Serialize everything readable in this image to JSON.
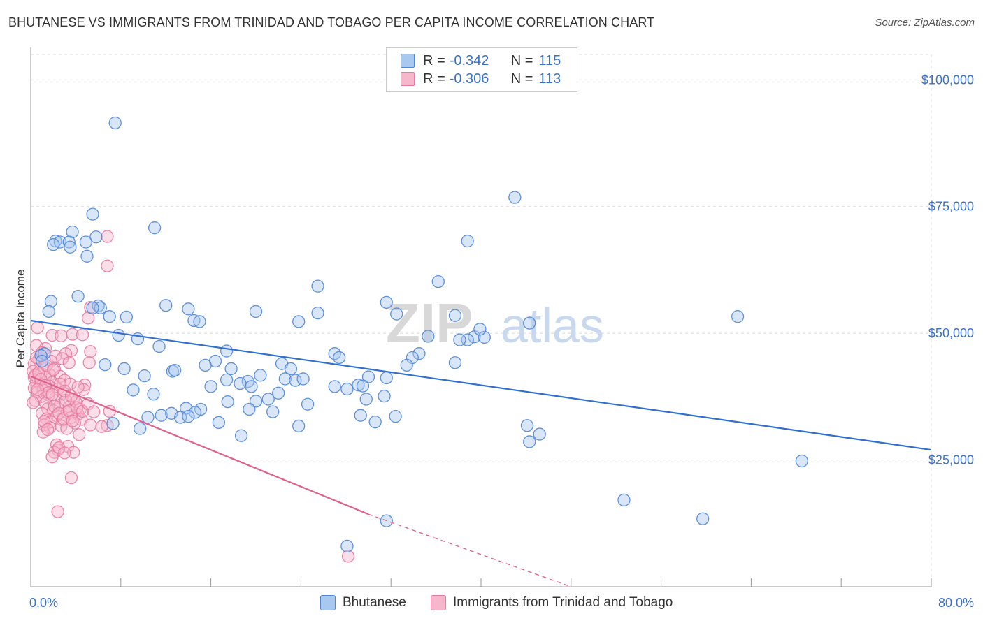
{
  "title": "BHUTANESE VS IMMIGRANTS FROM TRINIDAD AND TOBAGO PER CAPITA INCOME CORRELATION CHART",
  "source": "Source: ZipAtlas.com",
  "watermark": {
    "zip": "ZIP",
    "atlas": "atlas"
  },
  "legend_top": [
    {
      "r_label": "R =",
      "r_value": "-0.342",
      "n_label": "N =",
      "n_value": "115"
    },
    {
      "r_label": "R =",
      "r_value": "-0.306",
      "n_label": "N =",
      "n_value": "113"
    }
  ],
  "legend_bottom": [
    "Bhutanese",
    "Immigrants from Trinidad and Tobago"
  ],
  "colors": {
    "blue_fill": "#a8c8f0",
    "blue_stroke": "#4f86d8",
    "blue_line": "#2f6fcf",
    "pink_fill": "#f6b6cc",
    "pink_stroke": "#e87aa0",
    "pink_line": "#e0608c",
    "grid": "#dcdcdc",
    "axis_text": "#3a72c8"
  },
  "chart_data": {
    "type": "scatter",
    "title": "BHUTANESE VS IMMIGRANTS FROM TRINIDAD AND TOBAGO PER CAPITA INCOME CORRELATION CHART",
    "xlabel": "",
    "ylabel": "Per Capita Income",
    "xlim": [
      0,
      80
    ],
    "ylim": [
      0,
      105000
    ],
    "x_tick_labels": [
      "0.0%",
      "80.0%"
    ],
    "y_ticks": [
      25000,
      50000,
      75000,
      100000
    ],
    "y_tick_labels": [
      "$25,000",
      "$50,000",
      "$75,000",
      "$100,000"
    ],
    "grid": true,
    "legend_position": "top-center",
    "series": [
      {
        "name": "Bhutanese",
        "r": -0.342,
        "n": 115,
        "trend": {
          "x": [
            0,
            80
          ],
          "y": [
            52500,
            27000
          ]
        },
        "points": [
          [
            7.5,
            91500
          ],
          [
            43,
            76800
          ],
          [
            5.5,
            73500
          ],
          [
            11,
            70800
          ],
          [
            3.7,
            70000
          ],
          [
            5.8,
            69000
          ],
          [
            2.2,
            68200
          ],
          [
            2.6,
            68000
          ],
          [
            3.4,
            68000
          ],
          [
            2.0,
            67500
          ],
          [
            4.9,
            68000
          ],
          [
            3.5,
            67000
          ],
          [
            5.0,
            65200
          ],
          [
            38.8,
            68200
          ],
          [
            36.2,
            60200
          ],
          [
            25.5,
            59300
          ],
          [
            4.2,
            57300
          ],
          [
            1.8,
            56300
          ],
          [
            12,
            55500
          ],
          [
            31.6,
            56100
          ],
          [
            6.0,
            55400
          ],
          [
            6.2,
            55000
          ],
          [
            14,
            54800
          ],
          [
            20,
            54300
          ],
          [
            25.5,
            54000
          ],
          [
            1.6,
            54300
          ],
          [
            7.0,
            53300
          ],
          [
            8.5,
            53200
          ],
          [
            14.5,
            52500
          ],
          [
            23.8,
            52300
          ],
          [
            32.5,
            53800
          ],
          [
            37.7,
            53500
          ],
          [
            44.3,
            52000
          ],
          [
            62.8,
            53300
          ],
          [
            15.0,
            52300
          ],
          [
            7.8,
            49600
          ],
          [
            9.5,
            48900
          ],
          [
            35.3,
            49400
          ],
          [
            39.4,
            49300
          ],
          [
            40.3,
            49200
          ],
          [
            38.8,
            48700
          ],
          [
            38.1,
            48700
          ],
          [
            39.9,
            50800
          ],
          [
            11.4,
            47400
          ],
          [
            27.0,
            46000
          ],
          [
            34.5,
            46000
          ],
          [
            17.4,
            46500
          ],
          [
            1.2,
            46000
          ],
          [
            0.9,
            45600
          ],
          [
            1.0,
            44500
          ],
          [
            27.4,
            45200
          ],
          [
            33.9,
            45200
          ],
          [
            16.4,
            44500
          ],
          [
            6.6,
            43800
          ],
          [
            8.3,
            43000
          ],
          [
            12.6,
            42500
          ],
          [
            15.5,
            43700
          ],
          [
            17.8,
            43000
          ],
          [
            22.3,
            44000
          ],
          [
            23.1,
            43000
          ],
          [
            33.4,
            43700
          ],
          [
            37.7,
            44200
          ],
          [
            12.8,
            42700
          ],
          [
            10.1,
            41600
          ],
          [
            17.4,
            40800
          ],
          [
            19.3,
            40500
          ],
          [
            20.4,
            41700
          ],
          [
            22.6,
            41000
          ],
          [
            23.5,
            40700
          ],
          [
            24.2,
            41000
          ],
          [
            30.0,
            41400
          ],
          [
            31.6,
            41200
          ],
          [
            16.0,
            39500
          ],
          [
            18.6,
            40100
          ],
          [
            19.6,
            39500
          ],
          [
            27.0,
            39500
          ],
          [
            28.1,
            39000
          ],
          [
            29.1,
            39800
          ],
          [
            29.5,
            39600
          ],
          [
            9.1,
            38800
          ],
          [
            10.9,
            38000
          ],
          [
            21.1,
            37000
          ],
          [
            29.8,
            37000
          ],
          [
            31.4,
            37600
          ],
          [
            17.5,
            36500
          ],
          [
            20.0,
            36600
          ],
          [
            22.0,
            38200
          ],
          [
            24.6,
            36000
          ],
          [
            13.8,
            35200
          ],
          [
            15.1,
            35000
          ],
          [
            14.6,
            34400
          ],
          [
            11.6,
            33800
          ],
          [
            12.5,
            34200
          ],
          [
            13.3,
            33400
          ],
          [
            14.0,
            33600
          ],
          [
            19.4,
            35000
          ],
          [
            21.5,
            34500
          ],
          [
            29.3,
            33800
          ],
          [
            32.4,
            33600
          ],
          [
            10.4,
            33400
          ],
          [
            7.3,
            32200
          ],
          [
            16.7,
            32400
          ],
          [
            23.8,
            31700
          ],
          [
            30.6,
            32500
          ],
          [
            9.7,
            31200
          ],
          [
            18.7,
            29800
          ],
          [
            44.1,
            31800
          ],
          [
            45.2,
            30100
          ],
          [
            44.3,
            28600
          ],
          [
            68.5,
            24800
          ],
          [
            52.7,
            17100
          ],
          [
            59.7,
            13400
          ],
          [
            31.6,
            13000
          ],
          [
            28.1,
            8000
          ],
          [
            5.5,
            55000
          ]
        ]
      },
      {
        "name": "Immigrants from Trinidad and Tobago",
        "r": -0.306,
        "n": 113,
        "trend": {
          "x": [
            0,
            30
          ],
          "y": [
            41500,
            14300
          ]
        },
        "trend_dashed": {
          "x": [
            30,
            48
          ],
          "y": [
            14300,
            0
          ]
        },
        "points": [
          [
            6.8,
            69100
          ],
          [
            6.8,
            63300
          ],
          [
            5.3,
            55100
          ],
          [
            5.1,
            53000
          ],
          [
            0.6,
            51100
          ],
          [
            1.9,
            49600
          ],
          [
            3.7,
            49800
          ],
          [
            2.7,
            49500
          ],
          [
            0.5,
            47600
          ],
          [
            1.3,
            47000
          ],
          [
            3.6,
            46600
          ],
          [
            5.3,
            46400
          ],
          [
            3.1,
            46000
          ],
          [
            2.2,
            45500
          ],
          [
            2.8,
            45000
          ],
          [
            0.7,
            44800
          ],
          [
            1.8,
            44500
          ],
          [
            3.4,
            44200
          ],
          [
            0.3,
            44000
          ],
          [
            1.2,
            43400
          ],
          [
            2.1,
            43000
          ],
          [
            0.2,
            42500
          ],
          [
            0.9,
            42000
          ],
          [
            1.7,
            41800
          ],
          [
            2.6,
            41500
          ],
          [
            1.3,
            41300
          ],
          [
            3.0,
            40700
          ],
          [
            0.5,
            40500
          ],
          [
            1.9,
            40300
          ],
          [
            0.8,
            40000
          ],
          [
            3.5,
            40000
          ],
          [
            4.8,
            39800
          ],
          [
            1.6,
            39600
          ],
          [
            0.3,
            39200
          ],
          [
            2.4,
            39000
          ],
          [
            1.1,
            38800
          ],
          [
            4.7,
            38900
          ],
          [
            0.6,
            38400
          ],
          [
            2.9,
            38200
          ],
          [
            1.6,
            37800
          ],
          [
            0.9,
            37500
          ],
          [
            2.2,
            37200
          ],
          [
            3.8,
            37000
          ],
          [
            0.4,
            36700
          ],
          [
            4.0,
            36500
          ],
          [
            1.3,
            36200
          ],
          [
            2.6,
            35800
          ],
          [
            3.4,
            35500
          ],
          [
            1.5,
            35100
          ],
          [
            4.4,
            35000
          ],
          [
            2.0,
            34700
          ],
          [
            3.2,
            34400
          ],
          [
            1.0,
            34200
          ],
          [
            4.2,
            34000
          ],
          [
            2.3,
            33700
          ],
          [
            3.6,
            33400
          ],
          [
            1.4,
            33100
          ],
          [
            2.8,
            32900
          ],
          [
            4.5,
            33000
          ],
          [
            1.8,
            32500
          ],
          [
            3.9,
            32300
          ],
          [
            1.2,
            31900
          ],
          [
            2.7,
            31700
          ],
          [
            6.8,
            31800
          ],
          [
            1.7,
            31400
          ],
          [
            3.2,
            31200
          ],
          [
            4.3,
            30000
          ],
          [
            1.1,
            30500
          ],
          [
            2.3,
            28000
          ],
          [
            2.4,
            27000
          ],
          [
            3.3,
            27700
          ],
          [
            2.1,
            26500
          ],
          [
            3.8,
            26500
          ],
          [
            1.9,
            25600
          ],
          [
            3.6,
            21500
          ],
          [
            2.4,
            14800
          ],
          [
            28.2,
            6000
          ],
          [
            0.3,
            41300
          ],
          [
            0.4,
            41700
          ],
          [
            0.7,
            42200
          ],
          [
            0.9,
            40900
          ],
          [
            1.3,
            39700
          ],
          [
            1.6,
            38300
          ],
          [
            1.9,
            37900
          ],
          [
            2.1,
            35600
          ],
          [
            2.5,
            34200
          ],
          [
            2.9,
            33100
          ],
          [
            3.1,
            36800
          ],
          [
            3.4,
            34700
          ],
          [
            3.7,
            32700
          ],
          [
            4.1,
            35300
          ],
          [
            4.6,
            34600
          ],
          [
            5.1,
            36100
          ],
          [
            5.3,
            31900
          ],
          [
            5.6,
            34500
          ],
          [
            6.3,
            31600
          ],
          [
            7.0,
            34600
          ],
          [
            0.5,
            45200
          ],
          [
            1.0,
            46200
          ],
          [
            1.4,
            43600
          ],
          [
            2.0,
            42800
          ],
          [
            2.6,
            40000
          ],
          [
            3.0,
            38600
          ],
          [
            3.6,
            37600
          ],
          [
            4.2,
            39400
          ],
          [
            0.2,
            36300
          ],
          [
            0.6,
            38900
          ],
          [
            1.2,
            32600
          ],
          [
            1.5,
            31000
          ],
          [
            2.5,
            27400
          ],
          [
            3.0,
            26400
          ],
          [
            5.2,
            44200
          ],
          [
            4.6,
            49700
          ]
        ]
      }
    ]
  }
}
